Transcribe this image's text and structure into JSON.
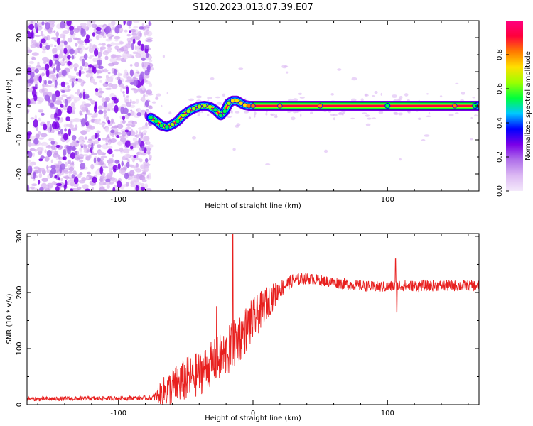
{
  "title": "S120.2023.013.07.39.E07",
  "chart_data": [
    {
      "type": "heatmap",
      "xlabel": "Height of straight line (km)",
      "ylabel": "Frequency (Hz)",
      "xlim": [
        -168,
        168
      ],
      "ylim": [
        -25,
        25
      ],
      "x_ticks": [
        -100,
        0,
        100
      ],
      "x_tick_labels": [
        "-100",
        "",
        "100"
      ],
      "y_ticks": [
        -20,
        -10,
        0,
        10,
        20
      ],
      "y_tick_labels": [
        "-20",
        "-10",
        "0",
        "10",
        "20"
      ],
      "grid": false,
      "colorbar": {
        "label": "Normalized spectral amplitude",
        "range": [
          0.0,
          1.0
        ],
        "ticks": [
          0.0,
          0.2,
          0.4,
          0.6,
          0.8
        ],
        "tick_labels": [
          "0.0",
          "0.2",
          "0.4",
          "0.6",
          "0.8"
        ],
        "colors": [
          "#f4e9fb",
          "#dcb9f3",
          "#b070ea",
          "#7a00e8",
          "#0000ff",
          "#00c8ff",
          "#00ff3c",
          "#9cff00",
          "#ffe000",
          "#ff7a00",
          "#ff003c",
          "#ff0080"
        ]
      },
      "noise_region_x": [
        -168,
        -76
      ],
      "signal_track": {
        "x": [
          -76,
          -72,
          -68,
          -64,
          -60,
          -56,
          -52,
          -48,
          -44,
          -40,
          -36,
          -32,
          -28,
          -24,
          -21,
          -18,
          -15,
          -12,
          -9,
          -6,
          -3,
          0,
          20,
          50,
          100,
          150,
          168
        ],
        "y": [
          -3.5,
          -4.5,
          -5.8,
          -6.2,
          -5.5,
          -4.5,
          -2.8,
          -1.6,
          -0.8,
          -0.2,
          0.0,
          -0.3,
          -1.2,
          -2.8,
          -1.6,
          0.8,
          1.5,
          1.5,
          0.8,
          0.2,
          0.0,
          0.0,
          0.0,
          0.0,
          0.0,
          0.0,
          0.0
        ],
        "amplitude": [
          0.5,
          0.55,
          0.6,
          0.6,
          0.62,
          0.6,
          0.62,
          0.65,
          0.68,
          0.7,
          0.7,
          0.66,
          0.6,
          0.5,
          0.55,
          0.7,
          0.8,
          0.8,
          0.85,
          0.9,
          0.95,
          1.0,
          1.0,
          1.0,
          1.0,
          1.0,
          1.0
        ]
      }
    },
    {
      "type": "line",
      "xlabel": "Height of straight line (km)",
      "ylabel": "SNR (10 * v/v)",
      "xlim": [
        -168,
        168
      ],
      "ylim": [
        0,
        305
      ],
      "x_ticks": [
        -100,
        0,
        100
      ],
      "x_tick_labels": [
        "-100",
        "0",
        "100"
      ],
      "y_ticks": [
        0,
        100,
        200,
        300
      ],
      "y_tick_labels": [
        "0",
        "100",
        "200",
        "300"
      ],
      "grid": false,
      "color": "#e8201f",
      "series_profile": {
        "x": [
          -168,
          -75,
          -65,
          -50,
          -40,
          -30,
          -20,
          -10,
          0,
          10,
          20,
          25,
          30,
          40,
          60,
          80,
          90,
          100,
          110,
          120,
          168
        ],
        "y": [
          10,
          12,
          25,
          45,
          55,
          75,
          90,
          120,
          150,
          180,
          205,
          215,
          222,
          225,
          218,
          212,
          210,
          210,
          212,
          212,
          212
        ],
        "noise": [
          4,
          4,
          30,
          40,
          40,
          40,
          45,
          45,
          40,
          30,
          18,
          12,
          12,
          10,
          10,
          10,
          10,
          10,
          10,
          10,
          10
        ]
      },
      "spikes": [
        {
          "x": -15,
          "y": 305
        },
        {
          "x": -27,
          "y": 175
        },
        {
          "x": 106,
          "y": 260
        },
        {
          "x": 107,
          "y": 165
        }
      ]
    }
  ]
}
